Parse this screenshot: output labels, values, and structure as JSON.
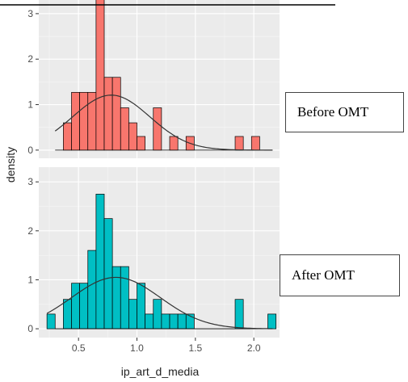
{
  "chart_data": {
    "type": "histogram",
    "xlabel": "ip_art_d_media",
    "ylabel": "density",
    "xlim": [
      0.16,
      2.22
    ],
    "ylim": [
      -0.18,
      3.3
    ],
    "x_ticks": [
      0.5,
      1.0,
      1.5,
      2.0
    ],
    "x_tick_labels": [
      "0.5",
      "1.0",
      "1.5",
      "2.0"
    ],
    "y_ticks": [
      0,
      1,
      2,
      3
    ],
    "y_tick_labels": [
      "0",
      "1",
      "2",
      "3"
    ],
    "bin_width": 0.07,
    "grid": true,
    "panels": [
      {
        "label": "Before OMT",
        "fill": "#F8766D",
        "bins": [
          {
            "x0": 0.37,
            "x1": 0.44,
            "density": 0.6
          },
          {
            "x0": 0.44,
            "x1": 0.51,
            "density": 1.27
          },
          {
            "x0": 0.51,
            "x1": 0.58,
            "density": 1.27
          },
          {
            "x0": 0.58,
            "x1": 0.65,
            "density": 1.27
          },
          {
            "x0": 0.65,
            "x1": 0.72,
            "density": 3.4
          },
          {
            "x0": 0.72,
            "x1": 0.79,
            "density": 1.6
          },
          {
            "x0": 0.79,
            "x1": 0.86,
            "density": 1.6
          },
          {
            "x0": 0.86,
            "x1": 0.93,
            "density": 0.93
          },
          {
            "x0": 0.93,
            "x1": 1.0,
            "density": 0.6
          },
          {
            "x0": 1.0,
            "x1": 1.07,
            "density": 0.3
          },
          {
            "x0": 1.14,
            "x1": 1.21,
            "density": 0.93
          },
          {
            "x0": 1.28,
            "x1": 1.35,
            "density": 0.3
          },
          {
            "x0": 1.42,
            "x1": 1.49,
            "density": 0.3
          },
          {
            "x0": 1.84,
            "x1": 1.91,
            "density": 0.3
          },
          {
            "x0": 1.98,
            "x1": 2.05,
            "density": 0.3
          }
        ],
        "curve": {
          "mean": 0.78,
          "sd": 0.33,
          "x_range": [
            0.3,
            2.16
          ]
        }
      },
      {
        "label": "After OMT",
        "fill": "#00BFC4",
        "bins": [
          {
            "x0": 0.23,
            "x1": 0.3,
            "density": 0.3
          },
          {
            "x0": 0.37,
            "x1": 0.44,
            "density": 0.6
          },
          {
            "x0": 0.44,
            "x1": 0.51,
            "density": 0.93
          },
          {
            "x0": 0.51,
            "x1": 0.58,
            "density": 0.93
          },
          {
            "x0": 0.58,
            "x1": 0.65,
            "density": 1.6
          },
          {
            "x0": 0.65,
            "x1": 0.72,
            "density": 2.75
          },
          {
            "x0": 0.72,
            "x1": 0.79,
            "density": 2.25
          },
          {
            "x0": 0.79,
            "x1": 0.86,
            "density": 1.27
          },
          {
            "x0": 0.86,
            "x1": 0.93,
            "density": 1.27
          },
          {
            "x0": 0.93,
            "x1": 1.0,
            "density": 0.6
          },
          {
            "x0": 1.0,
            "x1": 1.07,
            "density": 0.93
          },
          {
            "x0": 1.07,
            "x1": 1.14,
            "density": 0.3
          },
          {
            "x0": 1.14,
            "x1": 1.21,
            "density": 0.6
          },
          {
            "x0": 1.21,
            "x1": 1.28,
            "density": 0.3
          },
          {
            "x0": 1.28,
            "x1": 1.35,
            "density": 0.3
          },
          {
            "x0": 1.35,
            "x1": 1.42,
            "density": 0.3
          },
          {
            "x0": 1.42,
            "x1": 1.49,
            "density": 0.3
          },
          {
            "x0": 1.84,
            "x1": 1.91,
            "density": 0.6
          },
          {
            "x0": 2.12,
            "x1": 2.19,
            "density": 0.3
          }
        ],
        "curve": {
          "mean": 0.82,
          "sd": 0.38,
          "x_range": [
            0.23,
            2.12
          ]
        }
      }
    ]
  }
}
